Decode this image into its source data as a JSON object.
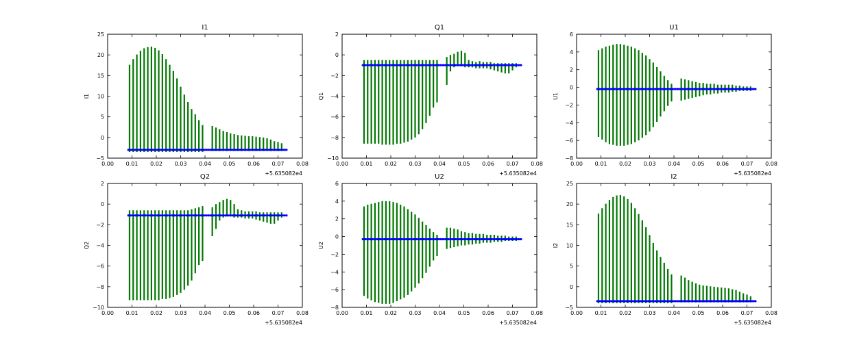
{
  "chart_data": [
    {
      "type": "line",
      "title": "I1",
      "ylabel": "I1",
      "xlim": [
        0.0,
        0.08
      ],
      "ylim": [
        -5,
        25
      ],
      "x_ticks": [
        "0.00",
        "0.01",
        "0.02",
        "0.03",
        "0.04",
        "0.05",
        "0.06",
        "0.07",
        "0.08"
      ],
      "y_ticks": [
        "−5",
        "0",
        "5",
        "10",
        "15",
        "20",
        "25"
      ],
      "y_tick_values": [
        -5,
        0,
        5,
        10,
        15,
        20,
        25
      ],
      "x_offset_label": "+5.635082e4",
      "series": [
        {
          "name": "data",
          "color": "#0000ff",
          "x": [
            0.0085,
            0.0735
          ],
          "y": [
            -3.0,
            -3.0
          ]
        },
        {
          "name": "error",
          "color": "#007700",
          "x": [
            0.009,
            0.0105,
            0.012,
            0.0135,
            0.015,
            0.0165,
            0.018,
            0.0195,
            0.021,
            0.0225,
            0.024,
            0.0255,
            0.027,
            0.0285,
            0.03,
            0.0315,
            0.033,
            0.0345,
            0.036,
            0.0375,
            0.039,
            0.043,
            0.0445,
            0.046,
            0.0475,
            0.049,
            0.0505,
            0.052,
            0.0535,
            0.055,
            0.0565,
            0.058,
            0.0595,
            0.061,
            0.0625,
            0.064,
            0.0655,
            0.067,
            0.0685,
            0.07,
            0.0715
          ],
          "upper": [
            17.6,
            19.0,
            20.1,
            21.0,
            21.6,
            21.9,
            22.0,
            21.7,
            21.1,
            20.2,
            19.0,
            17.6,
            16.1,
            14.3,
            12.3,
            10.4,
            8.6,
            6.9,
            5.6,
            4.2,
            3.0,
            2.8,
            2.4,
            2.0,
            1.6,
            1.3,
            1.0,
            0.8,
            0.6,
            0.5,
            0.4,
            0.3,
            0.3,
            0.2,
            0.1,
            0.0,
            -0.2,
            -0.5,
            -0.9,
            -1.1,
            -1.4
          ],
          "lower": [
            -3.5,
            -3.5,
            -3.5,
            -3.5,
            -3.5,
            -3.5,
            -3.5,
            -3.5,
            -3.5,
            -3.5,
            -3.5,
            -3.5,
            -3.5,
            -3.5,
            -3.5,
            -3.5,
            -3.5,
            -3.5,
            -3.5,
            -3.5,
            -3.5,
            -3.3,
            -3.3,
            -3.3,
            -3.3,
            -3.3,
            -3.3,
            -3.3,
            -3.3,
            -3.3,
            -3.3,
            -3.3,
            -3.3,
            -3.3,
            -3.3,
            -3.3,
            -3.3,
            -3.3,
            -3.3,
            -3.3,
            -3.3
          ]
        }
      ]
    },
    {
      "type": "line",
      "title": "Q1",
      "ylabel": "Q1",
      "xlim": [
        0.0,
        0.08
      ],
      "ylim": [
        -10,
        2
      ],
      "x_ticks": [
        "0.00",
        "0.01",
        "0.02",
        "0.03",
        "0.04",
        "0.05",
        "0.06",
        "0.07",
        "0.08"
      ],
      "y_ticks": [
        "−10",
        "−8",
        "−6",
        "−4",
        "−2",
        "0",
        "2"
      ],
      "y_tick_values": [
        -10,
        -8,
        -6,
        -4,
        -2,
        0,
        2
      ],
      "x_offset_label": "+5.635082e4",
      "series": [
        {
          "name": "data",
          "color": "#0000ff",
          "x": [
            0.0085,
            0.0735
          ],
          "y": [
            -1.0,
            -1.0
          ]
        },
        {
          "name": "error",
          "color": "#007700",
          "x": [
            0.009,
            0.0105,
            0.012,
            0.0135,
            0.015,
            0.0165,
            0.018,
            0.0195,
            0.021,
            0.0225,
            0.024,
            0.0255,
            0.027,
            0.0285,
            0.03,
            0.0315,
            0.033,
            0.0345,
            0.036,
            0.0375,
            0.039,
            0.043,
            0.0445,
            0.046,
            0.0475,
            0.049,
            0.0505,
            0.052,
            0.0535,
            0.055,
            0.0565,
            0.058,
            0.0595,
            0.061,
            0.0625,
            0.064,
            0.0655,
            0.067,
            0.0685,
            0.07,
            0.0715
          ],
          "upper": [
            -0.5,
            -0.5,
            -0.5,
            -0.5,
            -0.5,
            -0.5,
            -0.5,
            -0.5,
            -0.5,
            -0.5,
            -0.5,
            -0.5,
            -0.5,
            -0.5,
            -0.5,
            -0.5,
            -0.5,
            -0.5,
            -0.5,
            -0.5,
            -0.5,
            -0.2,
            0.0,
            0.1,
            0.3,
            0.4,
            0.2,
            -0.5,
            -0.6,
            -0.7,
            -0.6,
            -0.7,
            -0.7,
            -0.7,
            -0.8,
            -0.8,
            -0.8,
            -0.8,
            -0.8,
            -0.8,
            -0.8
          ],
          "lower": [
            -8.6,
            -8.6,
            -8.6,
            -8.6,
            -8.6,
            -8.7,
            -8.7,
            -8.7,
            -8.7,
            -8.6,
            -8.6,
            -8.5,
            -8.4,
            -8.2,
            -8.0,
            -7.7,
            -7.2,
            -6.6,
            -5.9,
            -5.1,
            -4.6,
            -2.9,
            -1.6,
            -1.2,
            -1.1,
            -1.1,
            -1.2,
            -1.2,
            -1.2,
            -1.3,
            -1.3,
            -1.3,
            -1.3,
            -1.4,
            -1.5,
            -1.6,
            -1.7,
            -1.8,
            -1.8,
            -1.5,
            -1.2
          ]
        }
      ]
    },
    {
      "type": "line",
      "title": "U1",
      "ylabel": "U1",
      "xlim": [
        0.0,
        0.08
      ],
      "ylim": [
        -8,
        6
      ],
      "x_ticks": [
        "0.00",
        "0.01",
        "0.02",
        "0.03",
        "0.04",
        "0.05",
        "0.06",
        "0.07",
        "0.08"
      ],
      "y_ticks": [
        "−8",
        "−6",
        "−4",
        "−2",
        "0",
        "2",
        "4",
        "6"
      ],
      "y_tick_values": [
        -8,
        -6,
        -4,
        -2,
        0,
        2,
        4,
        6
      ],
      "x_offset_label": "+5.635082e4",
      "series": [
        {
          "name": "data",
          "color": "#0000ff",
          "x": [
            0.0085,
            0.0735
          ],
          "y": [
            -0.2,
            -0.2
          ]
        },
        {
          "name": "error",
          "color": "#007700",
          "x": [
            0.009,
            0.0105,
            0.012,
            0.0135,
            0.015,
            0.0165,
            0.018,
            0.0195,
            0.021,
            0.0225,
            0.024,
            0.0255,
            0.027,
            0.0285,
            0.03,
            0.0315,
            0.033,
            0.0345,
            0.036,
            0.0375,
            0.039,
            0.043,
            0.0445,
            0.046,
            0.0475,
            0.049,
            0.0505,
            0.052,
            0.0535,
            0.055,
            0.0565,
            0.058,
            0.0595,
            0.061,
            0.0625,
            0.064,
            0.0655,
            0.067,
            0.0685,
            0.07,
            0.0715
          ],
          "upper": [
            4.2,
            4.4,
            4.6,
            4.7,
            4.8,
            4.9,
            4.9,
            4.8,
            4.7,
            4.6,
            4.4,
            4.2,
            3.9,
            3.6,
            3.2,
            2.8,
            2.3,
            1.8,
            1.3,
            0.8,
            0.4,
            1.0,
            0.9,
            0.8,
            0.7,
            0.6,
            0.5,
            0.5,
            0.4,
            0.4,
            0.4,
            0.3,
            0.3,
            0.3,
            0.3,
            0.3,
            0.2,
            0.2,
            0.1,
            0.1,
            0.1
          ],
          "lower": [
            -5.6,
            -5.9,
            -6.2,
            -6.4,
            -6.5,
            -6.6,
            -6.6,
            -6.6,
            -6.5,
            -6.4,
            -6.2,
            -6.0,
            -5.7,
            -5.4,
            -5.0,
            -4.5,
            -3.9,
            -3.3,
            -2.7,
            -2.1,
            -1.6,
            -1.5,
            -1.4,
            -1.3,
            -1.2,
            -1.1,
            -1.0,
            -0.9,
            -0.8,
            -0.8,
            -0.7,
            -0.7,
            -0.6,
            -0.6,
            -0.6,
            -0.5,
            -0.5,
            -0.4,
            -0.4,
            -0.4,
            -0.4
          ]
        }
      ]
    },
    {
      "type": "line",
      "title": "Q2",
      "ylabel": "Q2",
      "xlim": [
        0.0,
        0.08
      ],
      "ylim": [
        -10,
        2
      ],
      "x_ticks": [
        "0.00",
        "0.01",
        "0.02",
        "0.03",
        "0.04",
        "0.05",
        "0.06",
        "0.07",
        "0.08"
      ],
      "y_ticks": [
        "−10",
        "−8",
        "−6",
        "−4",
        "−2",
        "0",
        "2"
      ],
      "y_tick_values": [
        -10,
        -8,
        -6,
        -4,
        -2,
        0,
        2
      ],
      "x_offset_label": "+5.635082e4",
      "series": [
        {
          "name": "data",
          "color": "#0000ff",
          "x": [
            0.0085,
            0.0735
          ],
          "y": [
            -1.1,
            -1.1
          ]
        },
        {
          "name": "error",
          "color": "#007700",
          "x": [
            0.009,
            0.0105,
            0.012,
            0.0135,
            0.015,
            0.0165,
            0.018,
            0.0195,
            0.021,
            0.0225,
            0.024,
            0.0255,
            0.027,
            0.0285,
            0.03,
            0.0315,
            0.033,
            0.0345,
            0.036,
            0.0375,
            0.039,
            0.043,
            0.0445,
            0.046,
            0.0475,
            0.049,
            0.0505,
            0.052,
            0.0535,
            0.055,
            0.0565,
            0.058,
            0.0595,
            0.061,
            0.0625,
            0.064,
            0.0655,
            0.067,
            0.0685,
            0.07,
            0.0715
          ],
          "upper": [
            -0.6,
            -0.6,
            -0.6,
            -0.6,
            -0.6,
            -0.6,
            -0.6,
            -0.6,
            -0.6,
            -0.6,
            -0.6,
            -0.6,
            -0.6,
            -0.6,
            -0.6,
            -0.6,
            -0.6,
            -0.5,
            -0.4,
            -0.3,
            -0.2,
            -0.3,
            0.0,
            0.2,
            0.4,
            0.5,
            0.4,
            0.0,
            -0.5,
            -0.6,
            -0.7,
            -0.7,
            -0.7,
            -0.7,
            -0.8,
            -0.8,
            -0.8,
            -0.8,
            -0.8,
            -0.8,
            -0.8
          ],
          "lower": [
            -9.3,
            -9.3,
            -9.3,
            -9.3,
            -9.3,
            -9.3,
            -9.3,
            -9.3,
            -9.3,
            -9.2,
            -9.2,
            -9.1,
            -9.0,
            -8.8,
            -8.6,
            -8.3,
            -7.9,
            -7.4,
            -6.7,
            -5.9,
            -5.5,
            -3.1,
            -2.4,
            -1.6,
            -1.3,
            -1.2,
            -1.2,
            -1.3,
            -1.3,
            -1.3,
            -1.4,
            -1.4,
            -1.4,
            -1.5,
            -1.6,
            -1.7,
            -1.8,
            -1.9,
            -1.9,
            -1.6,
            -1.3
          ]
        }
      ]
    },
    {
      "type": "line",
      "title": "U2",
      "ylabel": "U2",
      "xlim": [
        0.0,
        0.08
      ],
      "ylim": [
        -8,
        6
      ],
      "x_ticks": [
        "0.00",
        "0.01",
        "0.02",
        "0.03",
        "0.04",
        "0.05",
        "0.06",
        "0.07",
        "0.08"
      ],
      "y_ticks": [
        "−8",
        "−6",
        "−4",
        "−2",
        "0",
        "2",
        "4",
        "6"
      ],
      "y_tick_values": [
        -8,
        -6,
        -4,
        -2,
        0,
        2,
        4,
        6
      ],
      "x_offset_label": "+5.635082e4",
      "series": [
        {
          "name": "data",
          "color": "#0000ff",
          "x": [
            0.0085,
            0.0735
          ],
          "y": [
            -0.3,
            -0.3
          ]
        },
        {
          "name": "error",
          "color": "#007700",
          "x": [
            0.009,
            0.0105,
            0.012,
            0.0135,
            0.015,
            0.0165,
            0.018,
            0.0195,
            0.021,
            0.0225,
            0.024,
            0.0255,
            0.027,
            0.0285,
            0.03,
            0.0315,
            0.033,
            0.0345,
            0.036,
            0.0375,
            0.039,
            0.043,
            0.0445,
            0.046,
            0.0475,
            0.049,
            0.0505,
            0.052,
            0.0535,
            0.055,
            0.0565,
            0.058,
            0.0595,
            0.061,
            0.0625,
            0.064,
            0.0655,
            0.067,
            0.0685,
            0.07,
            0.0715
          ],
          "upper": [
            3.4,
            3.6,
            3.7,
            3.8,
            3.9,
            4.0,
            4.0,
            4.0,
            3.9,
            3.8,
            3.6,
            3.4,
            3.1,
            2.8,
            2.5,
            2.1,
            1.7,
            1.3,
            0.9,
            0.5,
            0.2,
            1.0,
            1.0,
            0.9,
            0.8,
            0.6,
            0.5,
            0.4,
            0.4,
            0.3,
            0.3,
            0.3,
            0.2,
            0.2,
            0.2,
            0.1,
            0.1,
            0.1,
            0.0,
            0.0,
            0.0
          ],
          "lower": [
            -6.7,
            -7.0,
            -7.2,
            -7.4,
            -7.5,
            -7.6,
            -7.6,
            -7.6,
            -7.5,
            -7.3,
            -7.1,
            -6.9,
            -6.6,
            -6.2,
            -5.8,
            -5.3,
            -4.7,
            -4.1,
            -3.4,
            -2.7,
            -2.2,
            -1.4,
            -1.3,
            -1.2,
            -1.1,
            -1.0,
            -1.0,
            -0.9,
            -0.9,
            -0.8,
            -0.8,
            -0.7,
            -0.7,
            -0.7,
            -0.6,
            -0.6,
            -0.6,
            -0.5,
            -0.5,
            -0.5,
            -0.5
          ]
        }
      ]
    },
    {
      "type": "line",
      "title": "I2",
      "ylabel": "I2",
      "xlim": [
        0.0,
        0.08
      ],
      "ylim": [
        -5,
        25
      ],
      "x_ticks": [
        "0.00",
        "0.01",
        "0.02",
        "0.03",
        "0.04",
        "0.05",
        "0.06",
        "0.07",
        "0.08"
      ],
      "y_ticks": [
        "−5",
        "0",
        "5",
        "10",
        "15",
        "20",
        "25"
      ],
      "y_tick_values": [
        -5,
        0,
        5,
        10,
        15,
        20,
        25
      ],
      "x_offset_label": "+5.635082e4",
      "series": [
        {
          "name": "data",
          "color": "#0000ff",
          "x": [
            0.0085,
            0.0735
          ],
          "y": [
            -3.5,
            -3.5
          ]
        },
        {
          "name": "error",
          "color": "#007700",
          "x": [
            0.009,
            0.0105,
            0.012,
            0.0135,
            0.015,
            0.0165,
            0.018,
            0.0195,
            0.021,
            0.0225,
            0.024,
            0.0255,
            0.027,
            0.0285,
            0.03,
            0.0315,
            0.033,
            0.0345,
            0.036,
            0.0375,
            0.039,
            0.043,
            0.0445,
            0.046,
            0.0475,
            0.049,
            0.0505,
            0.052,
            0.0535,
            0.055,
            0.0565,
            0.058,
            0.0595,
            0.061,
            0.0625,
            0.064,
            0.0655,
            0.067,
            0.0685,
            0.07,
            0.0715
          ],
          "upper": [
            17.7,
            19.0,
            20.1,
            21.0,
            21.7,
            22.1,
            22.2,
            21.9,
            21.2,
            20.3,
            19.0,
            17.6,
            16.1,
            14.4,
            12.5,
            10.6,
            8.8,
            7.2,
            5.8,
            4.3,
            3.0,
            2.7,
            2.2,
            1.6,
            1.2,
            0.8,
            0.5,
            0.3,
            0.2,
            0.1,
            0.0,
            -0.1,
            -0.2,
            -0.3,
            -0.4,
            -0.6,
            -0.8,
            -1.2,
            -1.6,
            -1.9,
            -2.3
          ],
          "lower": [
            -4.0,
            -4.0,
            -4.0,
            -4.0,
            -4.0,
            -4.0,
            -4.0,
            -4.0,
            -4.0,
            -4.0,
            -4.0,
            -4.0,
            -4.0,
            -4.0,
            -4.0,
            -4.0,
            -4.0,
            -4.0,
            -4.0,
            -4.0,
            -4.0,
            -3.8,
            -3.8,
            -3.8,
            -3.8,
            -3.8,
            -3.8,
            -3.8,
            -3.8,
            -3.8,
            -3.8,
            -3.8,
            -3.8,
            -3.8,
            -3.8,
            -3.8,
            -3.8,
            -3.8,
            -3.8,
            -3.8,
            -3.8
          ]
        }
      ]
    }
  ]
}
